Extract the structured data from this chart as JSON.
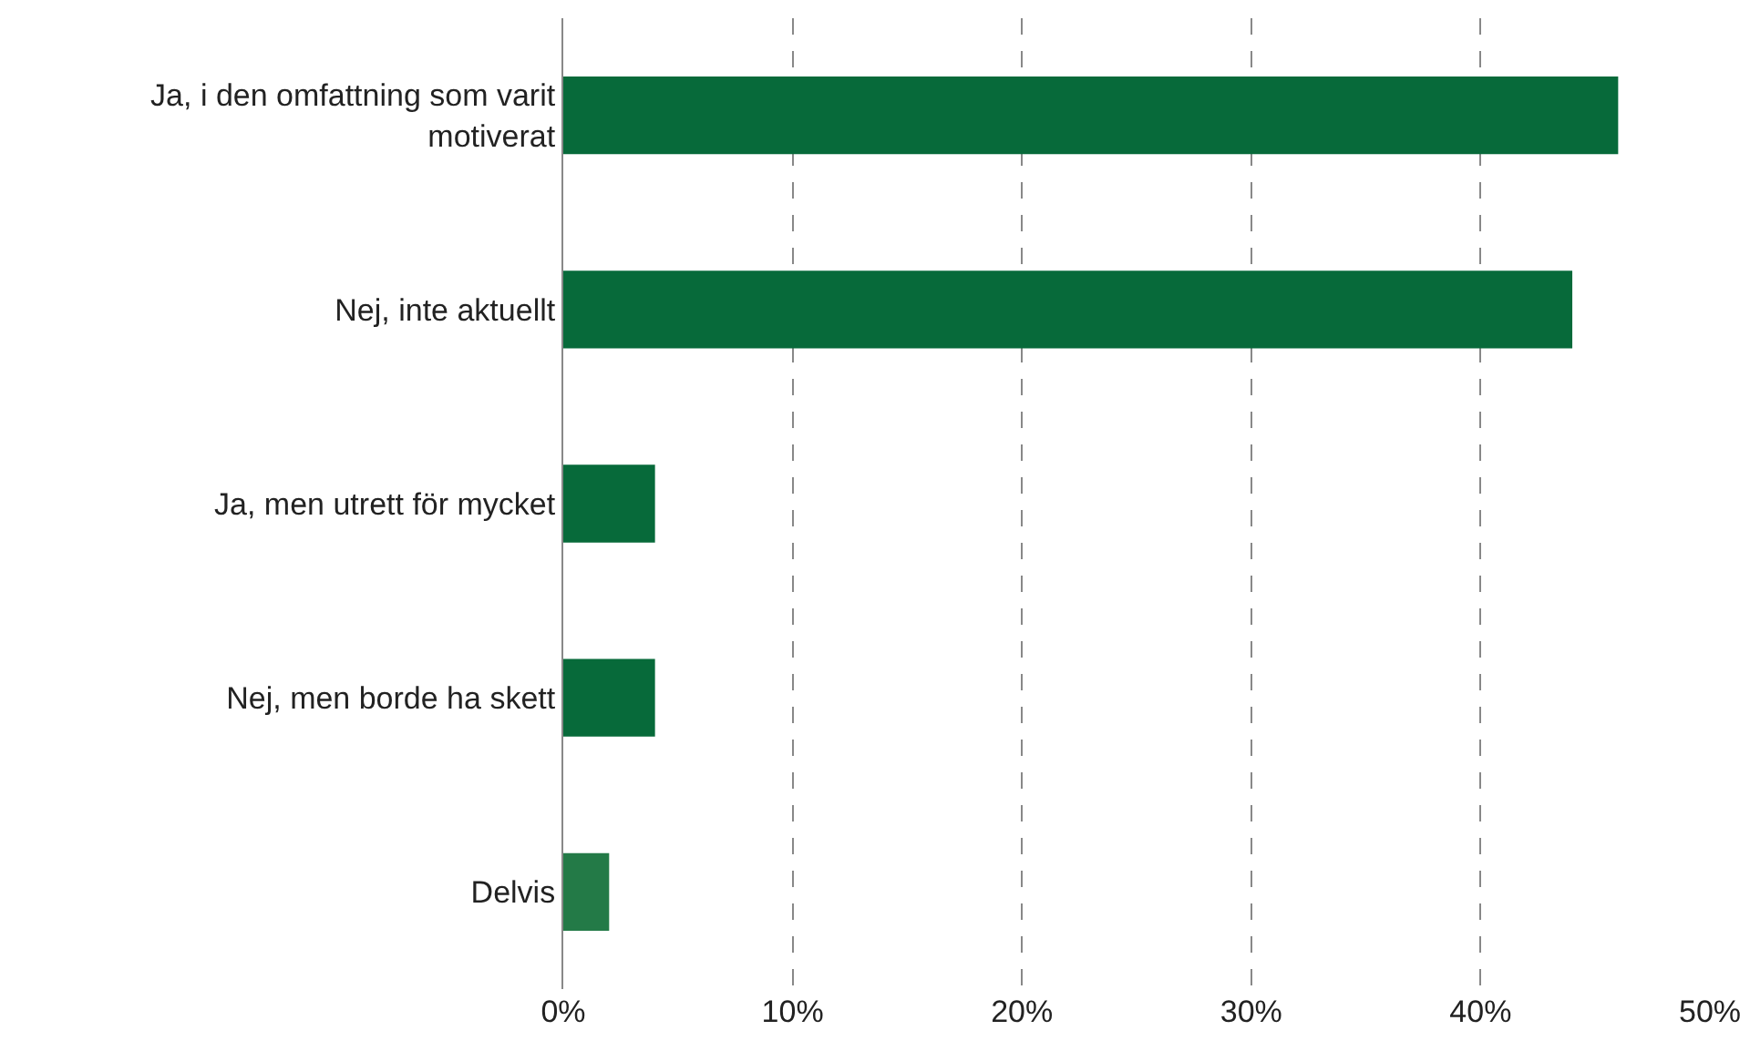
{
  "chart_data": {
    "type": "bar",
    "orientation": "horizontal",
    "categories": [
      "Ja, i den omfattning som varit motiverat",
      "Nej, inte aktuellt",
      "Ja, men utrett för mycket",
      "Nej, men borde ha skett",
      "Delvis"
    ],
    "values": [
      46,
      44,
      4,
      4,
      2
    ],
    "colors": [
      "#076a3a",
      "#076a3a",
      "#076a3a",
      "#076a3a",
      "#237a47"
    ],
    "xlim": [
      0,
      50
    ],
    "xticks": [
      {
        "value": 0,
        "label": "0%"
      },
      {
        "value": 10,
        "label": "10%"
      },
      {
        "value": 20,
        "label": "20%"
      },
      {
        "value": 30,
        "label": "30%"
      },
      {
        "value": 40,
        "label": "40%"
      },
      {
        "value": 50,
        "label": "50%"
      }
    ],
    "grid": "x"
  }
}
